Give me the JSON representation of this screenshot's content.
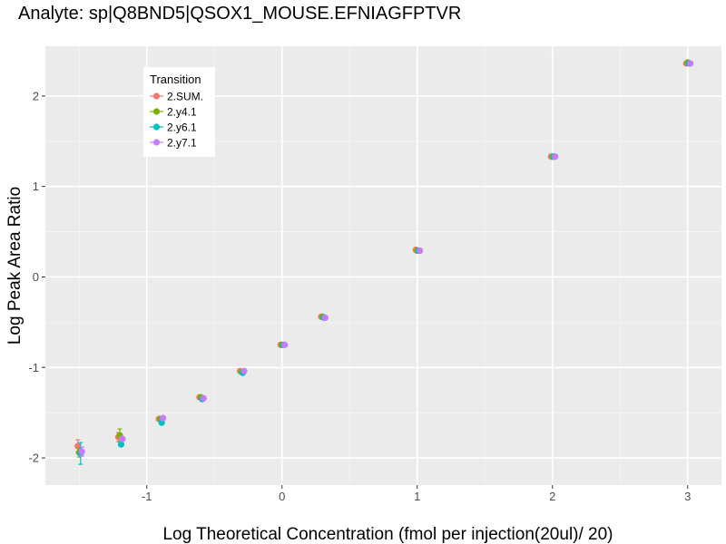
{
  "chart_data": {
    "type": "scatter",
    "title": "Analyte: sp|Q8BND5|QSOX1_MOUSE.EFNIAGFPTVR",
    "xlabel": "Log Theoretical Concentration (fmol per injection(20ul)/ 20)",
    "ylabel": "Log Peak Area Ratio",
    "xlim": [
      -1.75,
      3.25
    ],
    "ylim": [
      -2.3,
      2.55
    ],
    "x_ticks": [
      -1,
      0,
      1,
      2,
      3
    ],
    "x_tick_labels": [
      "-1",
      "0",
      "1",
      "2",
      "3"
    ],
    "y_ticks": [
      -2,
      -1,
      0,
      1,
      2
    ],
    "y_tick_labels": [
      "-2",
      "-1",
      "0",
      "1",
      "2"
    ],
    "grid": true,
    "legend": {
      "title": "Transition",
      "position": "top-left"
    },
    "series": [
      {
        "name": "2.SUM.",
        "color": "#F8766D",
        "x": [
          -1.51,
          -1.21,
          -0.91,
          -0.61,
          -0.31,
          -0.01,
          0.29,
          0.99,
          1.99,
          2.99
        ],
        "y": [
          -1.87,
          -1.77,
          -1.57,
          -1.33,
          -1.04,
          -0.75,
          -0.44,
          0.3,
          1.33,
          2.36
        ],
        "err": [
          0.07,
          0.05,
          0,
          0,
          0,
          0,
          0,
          0,
          0,
          0
        ]
      },
      {
        "name": "2.y4.1",
        "color": "#7CAE00",
        "x": [
          -1.5,
          -1.2,
          -0.9,
          -0.6,
          -0.3,
          0.0,
          0.3,
          1.0,
          2.0,
          3.0
        ],
        "y": [
          -1.94,
          -1.75,
          -1.57,
          -1.33,
          -1.05,
          -0.75,
          -0.44,
          0.29,
          1.33,
          2.37
        ],
        "err": [
          0.05,
          0.07,
          0,
          0,
          0,
          0,
          0,
          0,
          0,
          0
        ]
      },
      {
        "name": "2.y6.1",
        "color": "#00BFC4",
        "x": [
          -1.49,
          -1.19,
          -0.89,
          -0.59,
          -0.29,
          0.01,
          0.31,
          1.01,
          2.01,
          3.01
        ],
        "y": [
          -1.95,
          -1.85,
          -1.61,
          -1.35,
          -1.06,
          -0.75,
          -0.45,
          0.29,
          1.33,
          2.36
        ],
        "err": [
          0.12,
          0,
          0,
          0,
          0,
          0,
          0,
          0,
          0,
          0
        ]
      },
      {
        "name": "2.y7.1",
        "color": "#C77CFF",
        "x": [
          -1.48,
          -1.18,
          -0.88,
          -0.58,
          -0.28,
          0.02,
          0.32,
          1.02,
          2.02,
          3.02
        ],
        "y": [
          -1.93,
          -1.79,
          -1.56,
          -1.34,
          -1.04,
          -0.75,
          -0.45,
          0.29,
          1.33,
          2.36
        ],
        "err": [
          0.05,
          0,
          0,
          0,
          0,
          0,
          0,
          0,
          0,
          0
        ]
      }
    ]
  }
}
